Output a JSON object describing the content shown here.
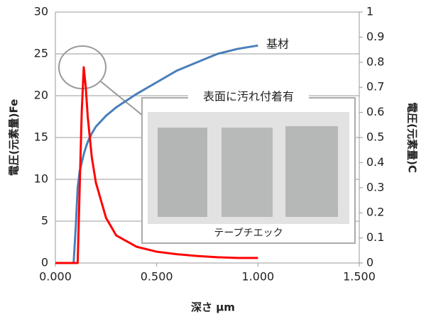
{
  "chart_data": {
    "type": "line",
    "x_label": "深さ μm",
    "y_label": "電圧(元素量)Fe",
    "y2_label": "電圧(元素量)C",
    "annotations": [
      "表面に汚れ付着有",
      "テープチエック"
    ],
    "x": [
      0,
      0.05,
      0.09,
      0.1,
      0.11,
      0.12,
      0.13,
      0.14,
      0.15,
      0.16,
      0.18,
      0.2,
      0.25,
      0.3,
      0.4,
      0.5,
      0.6,
      0.7,
      0.8,
      0.9,
      1.0
    ],
    "series": [
      {
        "name": "基材",
        "color": "#4a7ebb",
        "values": [
          0,
          0,
          0,
          4,
          9,
          11,
          12,
          13,
          13.8,
          14.5,
          15.5,
          16.3,
          17.6,
          18.6,
          20.2,
          21.6,
          23,
          24,
          25,
          25.6,
          26
        ]
      },
      {
        "color": "#ff0000",
        "axis": "y2",
        "values": [
          0,
          0,
          0,
          0,
          0,
          0.3,
          0.6,
          0.78,
          0.7,
          0.58,
          0.42,
          0.32,
          0.18,
          0.11,
          0.065,
          0.045,
          0.035,
          0.028,
          0.023,
          0.02,
          0.02
        ]
      }
    ],
    "xlim": [
      0,
      1.5
    ],
    "xticks": [
      {
        "value": 0,
        "label": "0.000"
      },
      {
        "value": 0.5,
        "label": "0.500"
      },
      {
        "value": 1.0,
        "label": "1.000"
      },
      {
        "value": 1.5,
        "label": "1.500"
      }
    ],
    "ylim": [
      0,
      30
    ],
    "yticks": [
      0,
      5,
      10,
      15,
      20,
      25,
      30
    ],
    "y2lim": [
      0,
      1
    ],
    "y2ticks": [
      0,
      0.1,
      0.2,
      0.3,
      0.4,
      0.5,
      0.6,
      0.7,
      0.8,
      0.9,
      1
    ],
    "grid": true
  }
}
